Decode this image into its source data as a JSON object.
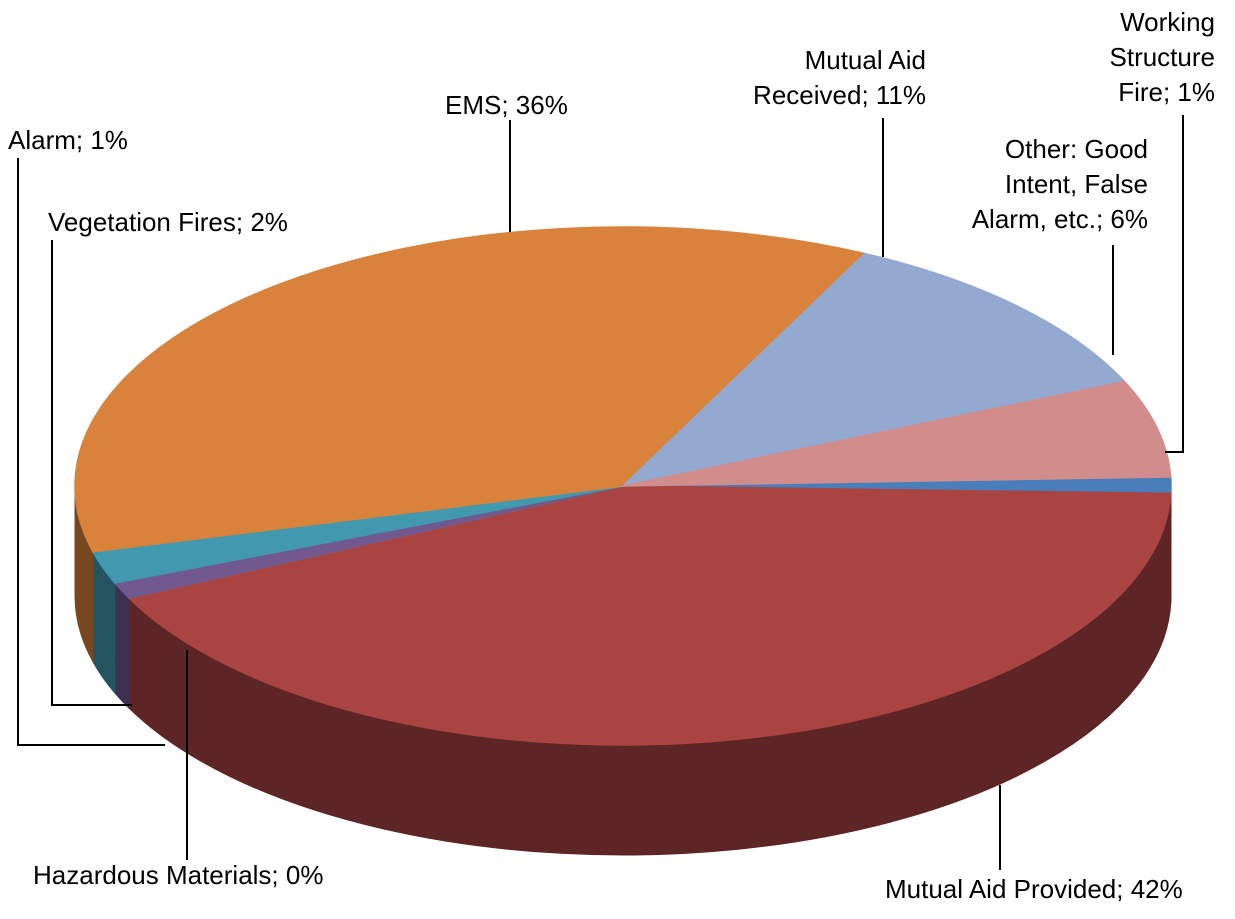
{
  "chart_data": {
    "type": "pie3d",
    "value_labels": [
      "Working Structure Fire; 1%",
      "Mutual Aid Provided; 42%",
      "Hazardous Materials; 0%",
      "Alarm; 1%",
      "Vegetation Fires; 2%",
      "EMS; 36%",
      "Mutual Aid Received; 11%",
      "Other: Good Intent, False Alarm, etc.; 6%"
    ],
    "values": [
      1,
      42,
      0,
      1,
      2,
      36,
      11,
      6
    ],
    "colors": [
      "#4a7ebb",
      "#a94443",
      "#89a54e",
      "#71588f",
      "#4198af",
      "#d8823b",
      "#93a9cf",
      "#d08d8c"
    ]
  }
}
